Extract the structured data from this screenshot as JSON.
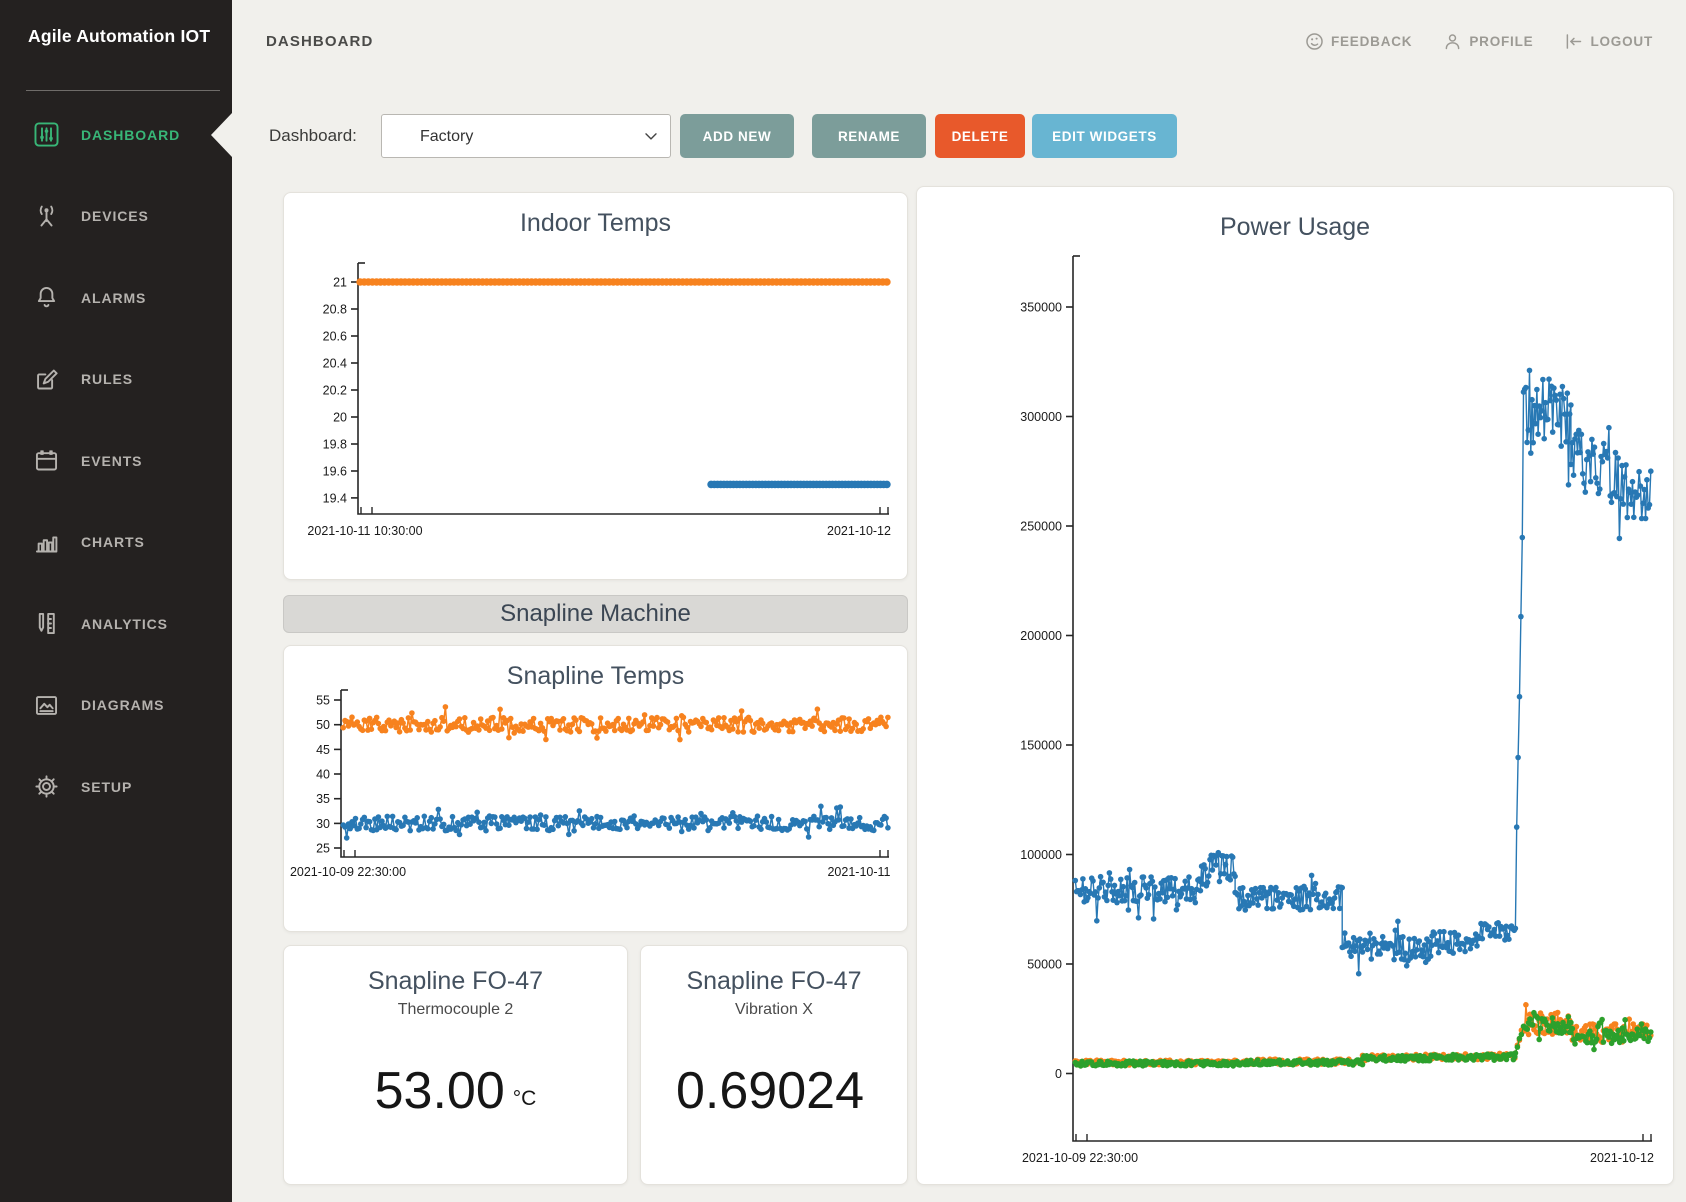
{
  "app": {
    "brand": "Agile Automation IOT"
  },
  "colors": {
    "sidebar_active": "#38b677",
    "series_blue": "#2878b4",
    "series_orange": "#f7821e",
    "series_green": "#2ca02c",
    "button_teal": "#7c9d9a",
    "button_delete": "#e8592b",
    "button_edit": "#68b5d2"
  },
  "sidebar": {
    "items": [
      {
        "label": "DASHBOARD",
        "icon": "dashboard-icon",
        "active": true
      },
      {
        "label": "DEVICES",
        "icon": "devices-icon",
        "active": false
      },
      {
        "label": "ALARMS",
        "icon": "alarms-icon",
        "active": false
      },
      {
        "label": "RULES",
        "icon": "rules-icon",
        "active": false
      },
      {
        "label": "EVENTS",
        "icon": "events-icon",
        "active": false
      },
      {
        "label": "CHARTS",
        "icon": "charts-icon",
        "active": false
      },
      {
        "label": "ANALYTICS",
        "icon": "analytics-icon",
        "active": false
      },
      {
        "label": "DIAGRAMS",
        "icon": "diagrams-icon",
        "active": false
      },
      {
        "label": "SETUP",
        "icon": "setup-icon",
        "active": false
      }
    ]
  },
  "header": {
    "page_title": "DASHBOARD",
    "links": [
      {
        "label": "FEEDBACK",
        "icon": "feedback-icon"
      },
      {
        "label": "PROFILE",
        "icon": "profile-icon"
      },
      {
        "label": "LOGOUT",
        "icon": "logout-icon"
      }
    ]
  },
  "toolbar": {
    "label": "Dashboard:",
    "dashboard_select": {
      "value": "Factory"
    },
    "buttons": [
      {
        "label": "ADD NEW",
        "color": "#7c9d9a"
      },
      {
        "label": "RENAME",
        "color": "#7c9d9a"
      },
      {
        "label": "DELETE",
        "color": "#e8592b"
      },
      {
        "label": "EDIT WIDGETS",
        "color": "#68b5d2"
      }
    ]
  },
  "group_header": {
    "label": "Snapline Machine"
  },
  "value_cards": [
    {
      "title": "Snapline FO-47",
      "subtitle": "Thermocouple 2",
      "value": "53.00",
      "unit": "°C"
    },
    {
      "title": "Snapline FO-47",
      "subtitle": "Vibration X",
      "value": "0.69024",
      "unit": ""
    }
  ],
  "chart_data": [
    {
      "id": "indoor-temps",
      "type": "scatter",
      "title": "Indoor Temps",
      "x_start_label": "2021-10-11 10:30:00",
      "x_end_label": "2021-10-12",
      "y_ticks": [
        21,
        20.8,
        20.6,
        20.4,
        20.2,
        20,
        19.8,
        19.6,
        19.4
      ],
      "y_min": 19.281,
      "y_max": 21.141,
      "grid": false,
      "series": [
        {
          "name": "temperature-1",
          "color": "#f7821e",
          "marker_r": 3.8,
          "line_w": 3,
          "segments": [
            {
              "x0": 0.004,
              "x1": 0.996,
              "n": 130,
              "base": 21,
              "amp": 0
            }
          ]
        },
        {
          "name": "temperature-2",
          "color": "#2878b4",
          "marker_r": 3.8,
          "line_w": 3,
          "segments": [
            {
              "x0": 0.665,
              "x1": 0.996,
              "n": 56,
              "base": 19.5,
              "amp": 0
            }
          ]
        }
      ]
    },
    {
      "id": "snapline-temps",
      "type": "scatter",
      "title": "Snapline Temps",
      "x_start_label": "2021-10-09 22:30:00",
      "x_end_label": "2021-10-11",
      "y_ticks": [
        55,
        50,
        45,
        40,
        35,
        30,
        25
      ],
      "y_min": 23.18,
      "y_max": 57.03,
      "grid": false,
      "series": [
        {
          "name": "snapline-temp-1",
          "color": "#f7821e",
          "marker_r": 2.8,
          "line_w": 1.5,
          "segments": [
            {
              "x0": 0.004,
              "x1": 0.998,
              "n": 310,
              "base": 50,
              "amp": 1.5,
              "spike_p": 0.1,
              "spike_amp": 2.4
            }
          ]
        },
        {
          "name": "snapline-temp-2",
          "color": "#2878b4",
          "marker_r": 2.8,
          "line_w": 1.5,
          "segments": [
            {
              "x0": 0.004,
              "x1": 0.998,
              "n": 310,
              "base": 30,
              "amp": 1.5,
              "spike_p": 0.1,
              "spike_amp": 2.4
            }
          ]
        }
      ]
    },
    {
      "id": "power-usage",
      "type": "scatter",
      "title": "Power Usage",
      "x_start_label": "2021-10-09 22:30:00",
      "x_end_label": "2021-10-12",
      "y_ticks": [
        350000,
        300000,
        250000,
        200000,
        150000,
        100000,
        50000,
        0
      ],
      "y_min": -30800,
      "y_max": 373300,
      "grid": false,
      "series": [
        {
          "name": "power-orange",
          "color": "#f7821e",
          "marker_r": 2.8,
          "line_w": 1.4,
          "segments": [
            {
              "x0": 0.004,
              "x1": 0.3,
              "n": 128,
              "base": 5000,
              "amp": 1100
            },
            {
              "x0": 0.3,
              "x1": 0.5,
              "n": 86,
              "base": 5400,
              "amp": 1200
            },
            {
              "x0": 0.5,
              "x1": 0.763,
              "n": 112,
              "base": 7200,
              "amp": 1400,
              "trend": 800
            },
            {
              "x0": 0.764,
              "x1": 0.778,
              "n": 5,
              "base": 9500,
              "amp": 1500,
              "trend": 12000
            },
            {
              "x0": 0.78,
              "x1": 0.86,
              "n": 36,
              "base": 23000,
              "amp": 5000,
              "spike_p": 0.2,
              "spike_amp": 4000
            },
            {
              "x0": 0.86,
              "x1": 0.998,
              "n": 60,
              "base": 18500,
              "amp": 4200,
              "spike_p": 0.15,
              "spike_amp": 4500
            }
          ]
        },
        {
          "name": "power-green",
          "color": "#2ca02c",
          "marker_r": 2.8,
          "line_w": 1.4,
          "segments": [
            {
              "x0": 0.004,
              "x1": 0.3,
              "n": 128,
              "base": 4600,
              "amp": 1100
            },
            {
              "x0": 0.3,
              "x1": 0.5,
              "n": 86,
              "base": 5000,
              "amp": 1200
            },
            {
              "x0": 0.5,
              "x1": 0.763,
              "n": 112,
              "base": 6800,
              "amp": 1400,
              "trend": 800
            },
            {
              "x0": 0.764,
              "x1": 0.778,
              "n": 5,
              "base": 9000,
              "amp": 1500,
              "trend": 12000
            },
            {
              "x0": 0.78,
              "x1": 0.86,
              "n": 36,
              "base": 22000,
              "amp": 4500,
              "spike_p": 0.2,
              "spike_amp": 4000
            },
            {
              "x0": 0.86,
              "x1": 0.998,
              "n": 60,
              "base": 17500,
              "amp": 4000,
              "spike_p": 0.15,
              "spike_amp": 4500
            }
          ]
        },
        {
          "name": "power-blue",
          "color": "#2878b4",
          "marker_r": 2.8,
          "line_w": 1.4,
          "segments": [
            {
              "x0": 0.004,
              "x1": 0.22,
              "n": 100,
              "base": 84000,
              "amp": 6000,
              "spike_p": 0.1,
              "spike_amp": 9000
            },
            {
              "x0": 0.22,
              "x1": 0.28,
              "n": 30,
              "base": 93000,
              "amp": 8000,
              "spike_p": 0.2,
              "spike_amp": 11000
            },
            {
              "x0": 0.28,
              "x1": 0.465,
              "n": 85,
              "base": 80000,
              "amp": 5500,
              "spike_p": 0.1,
              "spike_amp": 9000
            },
            {
              "x0": 0.465,
              "x1": 0.62,
              "n": 72,
              "base": 57000,
              "amp": 5500,
              "spike_p": 0.15,
              "spike_amp": 9000
            },
            {
              "x0": 0.62,
              "x1": 0.7,
              "n": 36,
              "base": 60000,
              "amp": 5000,
              "spike_p": 0.12,
              "spike_amp": 8000
            },
            {
              "x0": 0.7,
              "x1": 0.762,
              "n": 28,
              "base": 65000,
              "amp": 4000
            },
            {
              "x0": 0.764,
              "x1": 0.776,
              "n": 6,
              "base": 72000,
              "amp": 6000,
              "trend": 175000
            },
            {
              "x0": 0.778,
              "x1": 0.86,
              "n": 40,
              "base": 302000,
              "amp": 16000,
              "spike_p": 0.18,
              "spike_amp": 22000
            },
            {
              "x0": 0.86,
              "x1": 0.998,
              "n": 62,
              "base": 283000,
              "amp": 15000,
              "trend": -22000,
              "spike_p": 0.12,
              "spike_amp": 18000
            }
          ]
        }
      ]
    }
  ]
}
